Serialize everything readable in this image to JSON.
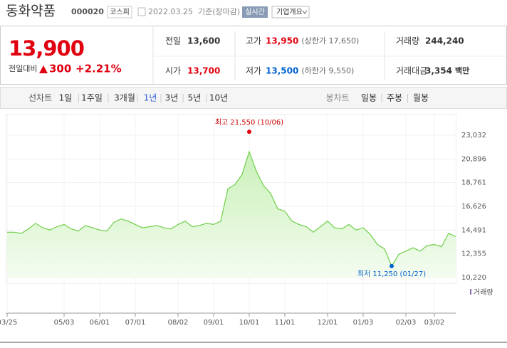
{
  "header": {
    "name": "동화약품",
    "code": "000020",
    "market": "코스피",
    "date": "2022.03.25",
    "basis": "기준(장마감)",
    "realtime": "실시간",
    "company_info": "기업개요"
  },
  "quote": {
    "price": "13,900",
    "change_label": "전일대비",
    "change": "300",
    "change_pct": "+2.21%"
  },
  "stats": [
    {
      "label": "전일",
      "value": "13,600"
    },
    {
      "label": "고가",
      "value": "13,950",
      "note": "(상한가 17,650)"
    },
    {
      "label": "거래량",
      "value": "244,240"
    },
    {
      "label": "시가",
      "value": "13,700"
    },
    {
      "label": "저가",
      "value": "13,500",
      "note": "(하한가 9,550)"
    },
    {
      "label": "거래대금",
      "value": "3,354",
      "unit": "백만"
    }
  ],
  "tabs": {
    "line_label": "선차트",
    "line_periods": [
      "1일",
      "1주일",
      "3개월",
      "1년",
      "3년",
      "5년",
      "10년"
    ],
    "candle_label": "봉차트",
    "candle_periods": [
      "일봉",
      "주봉",
      "월봉"
    ]
  },
  "chart_data": {
    "type": "line",
    "color": "#6fcf4a",
    "categories": [
      "03/25",
      null,
      null,
      null,
      null,
      null,
      null,
      null,
      "05/03",
      null,
      null,
      null,
      null,
      "06/01",
      null,
      null,
      null,
      null,
      "07/01",
      null,
      null,
      null,
      null,
      null,
      "08/02",
      null,
      null,
      null,
      null,
      "09/01",
      null,
      null,
      null,
      null,
      "10/01",
      null,
      null,
      null,
      null,
      "11/01",
      null,
      null,
      null,
      null,
      null,
      "12/01",
      null,
      null,
      null,
      null,
      "01/03",
      null,
      null,
      null,
      null,
      null,
      "02/03",
      null,
      null,
      null,
      "03/02",
      null,
      null,
      null
    ],
    "values": [
      14300,
      14300,
      14200,
      14600,
      15100,
      14700,
      14500,
      14800,
      15000,
      14600,
      14400,
      14900,
      14700,
      14500,
      14400,
      15200,
      15500,
      15300,
      15000,
      14700,
      14800,
      14900,
      14700,
      14600,
      15000,
      15300,
      14800,
      14900,
      15100,
      15000,
      15300,
      18200,
      18600,
      19500,
      21550,
      19800,
      18500,
      17800,
      16400,
      16200,
      15300,
      15000,
      14800,
      14300,
      14800,
      15300,
      14700,
      14600,
      15000,
      14500,
      14700,
      14100,
      13200,
      12800,
      11250,
      12300,
      12600,
      12900,
      12600,
      13100,
      13200,
      13000,
      14200,
      13900
    ],
    "ylim": [
      10220,
      23032
    ],
    "yticks": [
      {
        "value": 10220,
        "label": "10,220"
      },
      {
        "value": 12355,
        "label": "12,355"
      },
      {
        "value": 14491,
        "label": "14,491"
      },
      {
        "value": 16626,
        "label": "16,626"
      },
      {
        "value": 18761,
        "label": "18,761"
      },
      {
        "value": 20896,
        "label": "20,896"
      },
      {
        "value": 23032,
        "label": "23,032"
      }
    ],
    "max_annotation": "최고 21,550 (10/06)",
    "min_annotation": "최저 11,250 (01/27)",
    "volume_label": "거래량",
    "grid": true
  }
}
